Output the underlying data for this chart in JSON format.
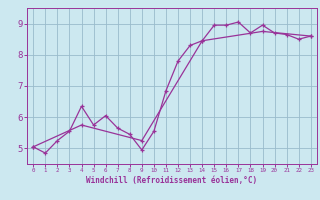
{
  "title": "",
  "xlabel": "Windchill (Refroidissement éolien,°C)",
  "bg_color": "#cce8f0",
  "line_color": "#993399",
  "grid_color": "#99bbcc",
  "xlim": [
    -0.5,
    23.5
  ],
  "ylim": [
    4.5,
    9.5
  ],
  "yticks": [
    5,
    6,
    7,
    8,
    9
  ],
  "xticks": [
    0,
    1,
    2,
    3,
    4,
    5,
    6,
    7,
    8,
    9,
    10,
    11,
    12,
    13,
    14,
    15,
    16,
    17,
    18,
    19,
    20,
    21,
    22,
    23
  ],
  "series1_x": [
    0,
    1,
    2,
    3,
    4,
    5,
    6,
    7,
    8,
    9,
    10,
    11,
    12,
    13,
    14,
    15,
    16,
    17,
    18,
    19,
    20,
    21,
    22,
    23
  ],
  "series1_y": [
    5.05,
    4.85,
    5.25,
    5.55,
    6.35,
    5.75,
    6.05,
    5.65,
    5.45,
    4.95,
    5.55,
    6.85,
    7.8,
    8.3,
    8.45,
    8.95,
    8.95,
    9.05,
    8.7,
    8.95,
    8.7,
    8.65,
    8.5,
    8.6
  ],
  "series2_x": [
    0,
    4,
    9,
    14,
    19,
    23
  ],
  "series2_y": [
    5.05,
    5.75,
    5.25,
    8.45,
    8.75,
    8.6
  ]
}
